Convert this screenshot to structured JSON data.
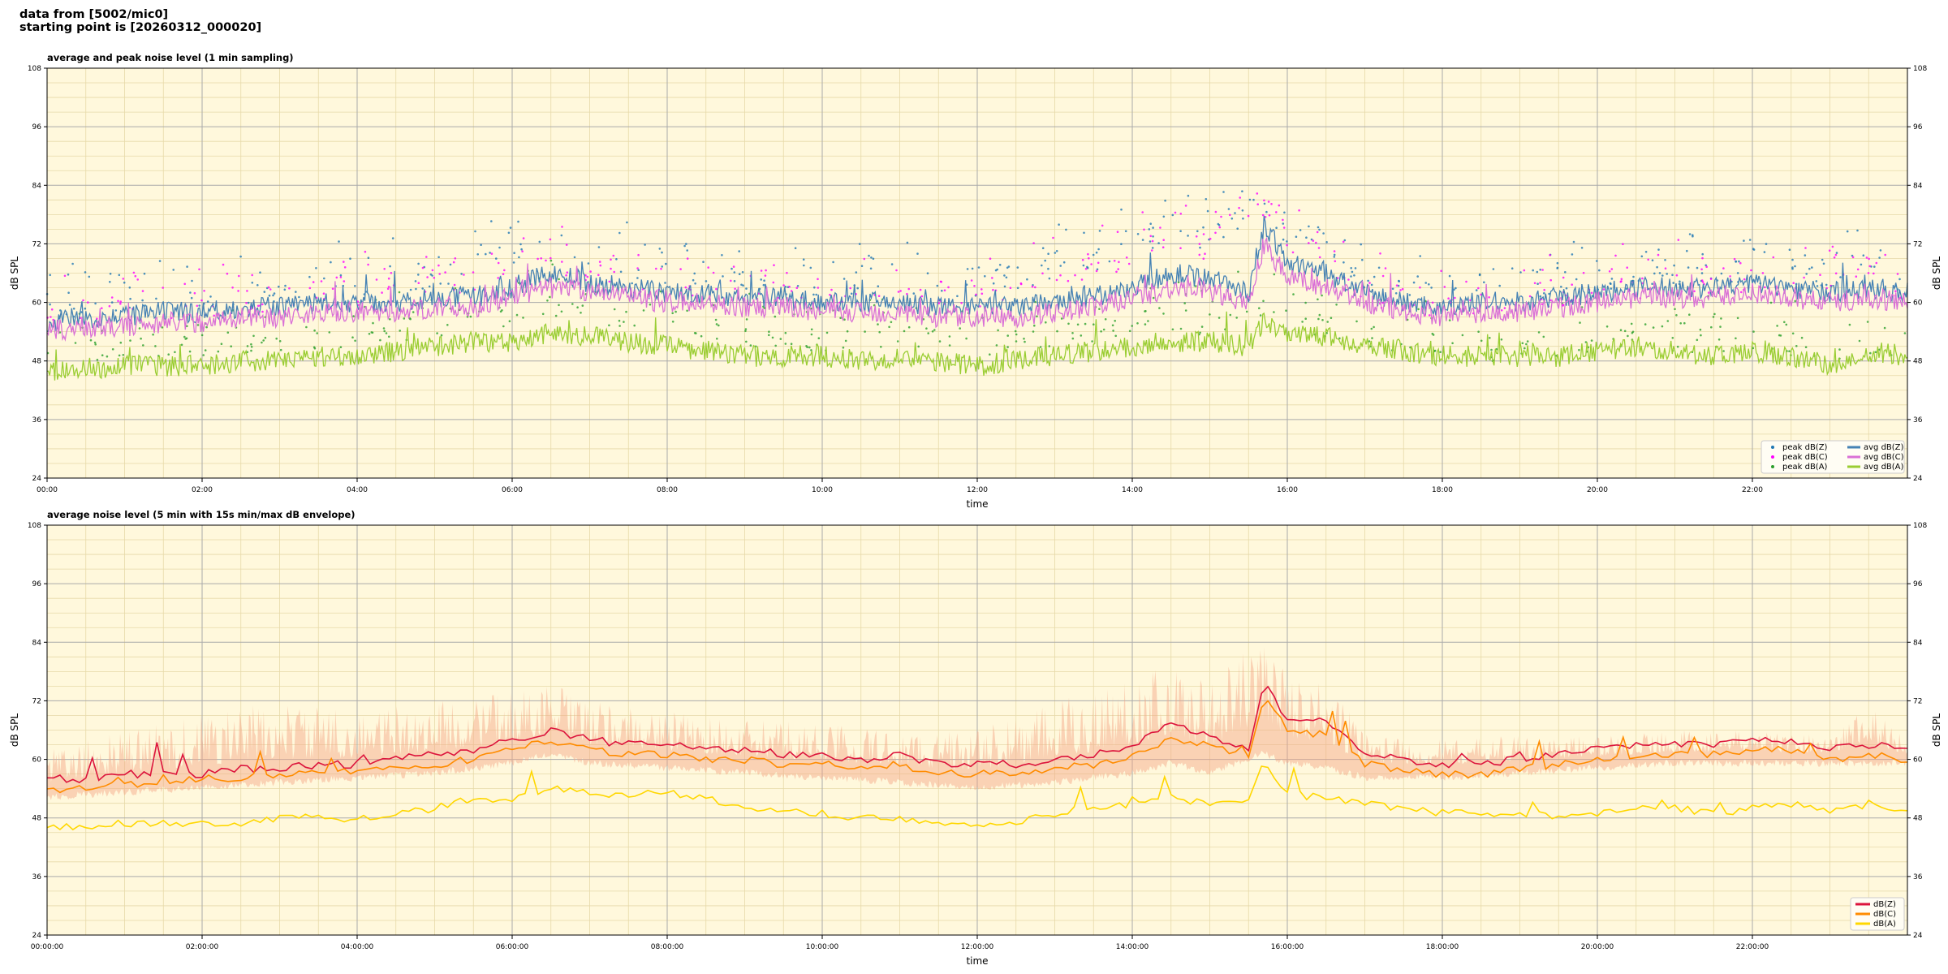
{
  "header": {
    "line1": "data from [5002/mic0]",
    "line2": "starting point is [20260312_000020]"
  },
  "colors": {
    "background": "#fff8dc",
    "peak_z": "#1f77b4",
    "peak_c": "#ff00ff",
    "peak_a": "#2ca02c",
    "avg_z": "#4682b4",
    "avg_c": "#da70d6",
    "avg_a": "#9acd32",
    "db_z": "#dc143c",
    "db_c": "#ff8c00",
    "db_a": "#ffd700",
    "envelope": "#f4a582"
  },
  "chart_data": [
    {
      "type": "line",
      "title": "average and peak noise level (1 min sampling)",
      "xlabel": "time",
      "ylabel": "dB SPL",
      "xlim_hours": [
        0,
        24
      ],
      "ylim": [
        24,
        108
      ],
      "yticks": [
        24,
        36,
        48,
        60,
        72,
        84,
        96,
        108
      ],
      "xticks": [
        "00:00",
        "02:00",
        "04:00",
        "06:00",
        "08:00",
        "10:00",
        "12:00",
        "14:00",
        "16:00",
        "18:00",
        "20:00",
        "22:00"
      ],
      "grid": true,
      "legend_position": "lower-right",
      "series": [
        {
          "name": "peak dB(Z)",
          "marker": "dot",
          "color_key": "peak_z",
          "x_hours": [
            0,
            1,
            2,
            3,
            4,
            5,
            6,
            6.5,
            7,
            8,
            9,
            10,
            11,
            12,
            13,
            14,
            14.5,
            15,
            15.7,
            16,
            16.5,
            17,
            18,
            19,
            20,
            21,
            22,
            23,
            23.5,
            24
          ],
          "values": [
            59,
            61,
            62,
            63,
            64,
            66,
            69,
            72,
            68,
            66,
            65,
            64,
            65,
            64,
            67,
            72,
            76,
            73,
            82,
            74,
            72,
            63,
            62,
            63,
            65,
            66,
            67,
            66,
            70,
            64
          ]
        },
        {
          "name": "peak dB(C)",
          "marker": "dot",
          "color_key": "peak_c",
          "x_hours": [
            0,
            1,
            2,
            3,
            4,
            5,
            6,
            6.5,
            7,
            8,
            9,
            10,
            11,
            12,
            13,
            14,
            14.5,
            15,
            15.7,
            16,
            16.5,
            17,
            18,
            19,
            20,
            21,
            22,
            23,
            23.5,
            24
          ],
          "values": [
            57,
            59,
            60,
            61,
            62,
            64,
            67,
            70,
            66,
            64,
            63,
            62,
            63,
            62,
            65,
            70,
            74,
            71,
            80,
            72,
            70,
            61,
            60,
            61,
            63,
            64,
            65,
            64,
            68,
            62
          ]
        },
        {
          "name": "peak dB(A)",
          "marker": "dot",
          "color_key": "peak_a",
          "x_hours": [
            0,
            1,
            2,
            3,
            4,
            5,
            6,
            6.5,
            7,
            8,
            9,
            10,
            11,
            12,
            13,
            14,
            14.5,
            15,
            15.7,
            16,
            16.5,
            17,
            18,
            19,
            20,
            21,
            22,
            23,
            23.5,
            24
          ],
          "values": [
            50,
            51,
            52,
            53,
            54,
            56,
            58,
            60,
            58,
            57,
            54,
            53,
            54,
            52,
            54,
            56,
            57,
            56,
            59,
            57,
            56,
            53,
            51,
            51,
            53,
            53,
            52,
            51,
            52,
            52
          ]
        },
        {
          "name": "avg dB(Z)",
          "marker": "line",
          "color_key": "avg_z",
          "x_hours": [
            0,
            0.5,
            1,
            1.5,
            2,
            2.5,
            3,
            3.5,
            4,
            4.5,
            5,
            5.5,
            6,
            6.5,
            7,
            7.5,
            8,
            8.5,
            9,
            9.5,
            10,
            10.5,
            11,
            11.5,
            12,
            12.5,
            13,
            13.5,
            14,
            14.5,
            15,
            15.5,
            15.7,
            16,
            16.5,
            17,
            17.5,
            18,
            18.5,
            19,
            19.5,
            20,
            20.5,
            21,
            21.5,
            22,
            22.5,
            23,
            23.5,
            24
          ],
          "values": [
            56,
            57,
            57,
            58,
            58,
            59,
            59,
            60,
            60,
            60,
            61,
            61,
            63,
            66,
            64,
            63,
            62,
            62,
            61,
            61,
            60,
            60,
            60,
            59,
            59,
            59,
            60,
            61,
            63,
            66,
            65,
            62,
            76,
            68,
            66,
            62,
            60,
            59,
            60,
            60,
            61,
            62,
            63,
            63,
            63,
            64,
            63,
            62,
            63,
            62
          ]
        },
        {
          "name": "avg dB(C)",
          "marker": "line",
          "color_key": "avg_c",
          "x_hours": [
            0,
            0.5,
            1,
            1.5,
            2,
            2.5,
            3,
            3.5,
            4,
            4.5,
            5,
            5.5,
            6,
            6.5,
            7,
            7.5,
            8,
            8.5,
            9,
            9.5,
            10,
            10.5,
            11,
            11.5,
            12,
            12.5,
            13,
            13.5,
            14,
            14.5,
            15,
            15.5,
            15.7,
            16,
            16.5,
            17,
            17.5,
            18,
            18.5,
            19,
            19.5,
            20,
            20.5,
            21,
            21.5,
            22,
            22.5,
            23,
            23.5,
            24
          ],
          "values": [
            54,
            55,
            55,
            56,
            56,
            57,
            57,
            58,
            58,
            58,
            59,
            59,
            61,
            63,
            62,
            61,
            60,
            60,
            59,
            59,
            58,
            58,
            58,
            57,
            57,
            57,
            58,
            59,
            61,
            63,
            62,
            60,
            72,
            65,
            63,
            60,
            58,
            57,
            58,
            58,
            59,
            60,
            61,
            61,
            61,
            62,
            61,
            60,
            61,
            60
          ]
        },
        {
          "name": "avg dB(A)",
          "marker": "line",
          "color_key": "avg_a",
          "x_hours": [
            0,
            0.5,
            1,
            1.5,
            2,
            2.5,
            3,
            3.5,
            4,
            4.5,
            5,
            5.5,
            6,
            6.5,
            7,
            7.5,
            8,
            8.5,
            9,
            9.5,
            10,
            10.5,
            11,
            11.5,
            12,
            12.5,
            13,
            13.5,
            14,
            14.5,
            15,
            15.5,
            15.7,
            16,
            16.5,
            17,
            17.5,
            18,
            18.5,
            19,
            19.5,
            20,
            20.5,
            21,
            21.5,
            22,
            22.5,
            23,
            23.5,
            24
          ],
          "values": [
            46,
            46,
            47,
            47,
            47,
            48,
            48,
            49,
            49,
            50,
            51,
            52,
            52,
            54,
            53,
            52,
            51,
            50,
            49,
            49,
            49,
            48,
            49,
            48,
            47,
            48,
            49,
            50,
            51,
            52,
            52,
            51,
            56,
            53,
            53,
            51,
            50,
            49,
            49,
            49,
            49,
            50,
            51,
            50,
            49,
            50,
            49,
            47,
            50,
            49
          ]
        }
      ]
    },
    {
      "type": "line",
      "title": "average noise level (5 min with 15s min/max dB envelope)",
      "xlabel": "time",
      "ylabel": "dB SPL",
      "xlim_hours": [
        0,
        24
      ],
      "ylim": [
        24,
        108
      ],
      "yticks": [
        24,
        36,
        48,
        60,
        72,
        84,
        96,
        108
      ],
      "xticks": [
        "00:00:00",
        "02:00:00",
        "04:00:00",
        "06:00:00",
        "08:00:00",
        "10:00:00",
        "12:00:00",
        "14:00:00",
        "16:00:00",
        "18:00:00",
        "20:00:00",
        "22:00:00"
      ],
      "grid": true,
      "legend_position": "lower-right",
      "envelope": {
        "color_key": "envelope",
        "x_hours": [
          0,
          1,
          2,
          3,
          4,
          5,
          6,
          6.5,
          7,
          8,
          9,
          10,
          11,
          12,
          13,
          14,
          14.5,
          15,
          15.7,
          16,
          16.5,
          17,
          18,
          19,
          20,
          21,
          22,
          23,
          23.5,
          24
        ],
        "max": [
          62,
          66,
          70,
          72,
          70,
          72,
          74,
          76,
          72,
          70,
          68,
          68,
          66,
          66,
          72,
          78,
          80,
          76,
          86,
          78,
          76,
          66,
          64,
          65,
          65,
          66,
          66,
          65,
          72,
          64
        ],
        "min": [
          53,
          54,
          55,
          56,
          57,
          58,
          60,
          62,
          60,
          59,
          58,
          57,
          56,
          55,
          56,
          58,
          60,
          58,
          62,
          60,
          59,
          57,
          57,
          58,
          59,
          60,
          60,
          60,
          60,
          60
        ]
      },
      "series": [
        {
          "name": "dB(Z)",
          "color_key": "db_z",
          "x_hours": [
            0,
            0.5,
            1,
            1.5,
            2,
            2.5,
            3,
            3.5,
            4,
            4.5,
            5,
            5.5,
            6,
            6.5,
            7,
            7.5,
            8,
            8.5,
            9,
            9.5,
            10,
            10.5,
            11,
            11.5,
            12,
            12.5,
            13,
            13.5,
            14,
            14.5,
            15,
            15.5,
            15.7,
            16,
            16.5,
            17,
            17.5,
            18,
            18.5,
            19,
            19.5,
            20,
            20.5,
            21,
            21.5,
            22,
            22.5,
            23,
            23.5,
            24
          ],
          "values": [
            56,
            56,
            57,
            57,
            57,
            58,
            58,
            59,
            59,
            60,
            61,
            62,
            64,
            66,
            64,
            63,
            63,
            62,
            62,
            61,
            61,
            60,
            61,
            59,
            59,
            59,
            60,
            61,
            63,
            67,
            65,
            62,
            76,
            68,
            68,
            61,
            60,
            59,
            59,
            60,
            61,
            62,
            63,
            63,
            63,
            64,
            64,
            62,
            63,
            62
          ]
        },
        {
          "name": "dB(C)",
          "color_key": "db_c",
          "x_hours": [
            0,
            0.5,
            1,
            1.5,
            2,
            2.5,
            3,
            3.5,
            4,
            4.5,
            5,
            5.5,
            6,
            6.5,
            7,
            7.5,
            8,
            8.5,
            9,
            9.5,
            10,
            10.5,
            11,
            11.5,
            12,
            12.5,
            13,
            13.5,
            14,
            14.5,
            15,
            15.5,
            15.7,
            16,
            16.5,
            17,
            17.5,
            18,
            18.5,
            19,
            19.5,
            20,
            20.5,
            21,
            21.5,
            22,
            22.5,
            23,
            23.5,
            24
          ],
          "values": [
            54,
            54,
            55,
            55,
            56,
            56,
            57,
            57,
            58,
            58,
            59,
            60,
            62,
            64,
            62,
            61,
            61,
            60,
            60,
            59,
            59,
            58,
            59,
            57,
            57,
            57,
            58,
            59,
            61,
            64,
            63,
            60,
            73,
            66,
            65,
            59,
            58,
            57,
            57,
            58,
            59,
            60,
            61,
            61,
            61,
            62,
            62,
            60,
            61,
            60
          ]
        },
        {
          "name": "dB(A)",
          "color_key": "db_a",
          "x_hours": [
            0,
            0.5,
            1,
            1.5,
            2,
            2.5,
            3,
            3.5,
            4,
            4.5,
            5,
            5.5,
            6,
            6.5,
            7,
            7.5,
            8,
            8.5,
            9,
            9.5,
            10,
            10.5,
            11,
            11.5,
            12,
            12.5,
            13,
            13.5,
            14,
            14.5,
            15,
            15.5,
            15.7,
            16,
            16.5,
            17,
            17.5,
            18,
            18.5,
            19,
            19.5,
            20,
            20.5,
            21,
            21.5,
            22,
            22.5,
            23,
            23.5,
            24
          ],
          "values": [
            46,
            46,
            47,
            47,
            47,
            47,
            48,
            48,
            48,
            49,
            50,
            52,
            52,
            54,
            53,
            53,
            53,
            52,
            50,
            49,
            49,
            48,
            48,
            47,
            47,
            47,
            49,
            50,
            51,
            52,
            51,
            51,
            60,
            53,
            52,
            51,
            50,
            49,
            49,
            49,
            48,
            49,
            50,
            50,
            49,
            50,
            51,
            49,
            51,
            49
          ]
        }
      ]
    }
  ]
}
